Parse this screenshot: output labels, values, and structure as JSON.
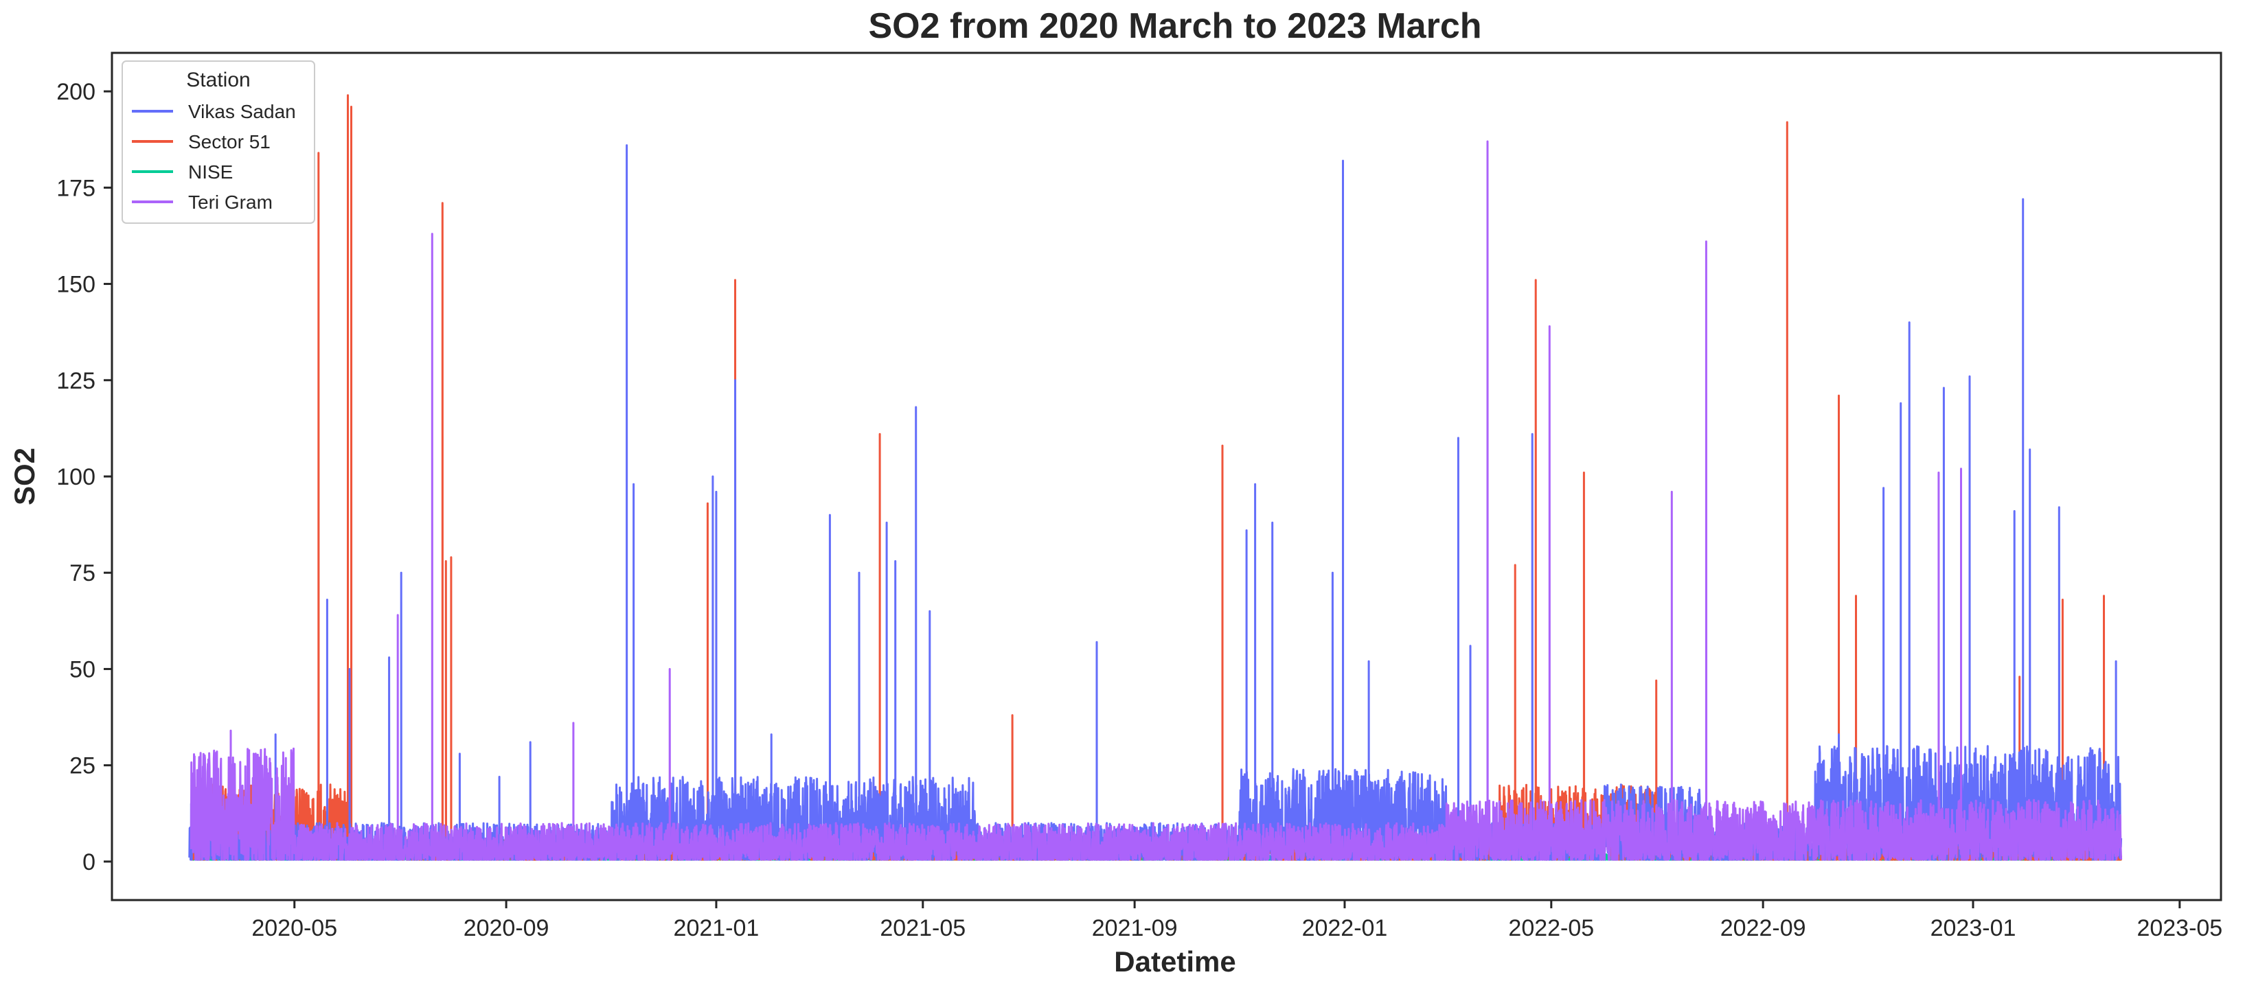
{
  "chart_data": {
    "type": "line",
    "title": "SO2 from 2020 March to 2023 March",
    "xlabel": "Datetime",
    "ylabel": "SO2",
    "x_range": [
      "2020-01-16",
      "2023-05-25"
    ],
    "ylim": [
      -10,
      210
    ],
    "x_ticks": [
      "2020-05",
      "2020-09",
      "2021-01",
      "2021-05",
      "2021-09",
      "2022-01",
      "2022-05",
      "2022-09",
      "2023-01",
      "2023-05"
    ],
    "y_ticks": [
      0,
      25,
      50,
      75,
      100,
      125,
      150,
      175,
      200
    ],
    "grid": false,
    "legend": {
      "title": "Station",
      "position": "top-left"
    },
    "series": [
      {
        "name": "Vikas Sadan",
        "color": "#636efa",
        "spikes": [
          [
            "2020-03-02",
            15
          ],
          [
            "2020-04-20",
            33
          ],
          [
            "2020-05-20",
            68
          ],
          [
            "2020-06-02",
            50
          ],
          [
            "2020-06-25",
            53
          ],
          [
            "2020-07-02",
            75
          ],
          [
            "2020-08-05",
            28
          ],
          [
            "2020-08-28",
            22
          ],
          [
            "2020-09-15",
            31
          ],
          [
            "2020-11-10",
            186
          ],
          [
            "2020-11-14",
            98
          ],
          [
            "2020-12-30",
            100
          ],
          [
            "2021-01-01",
            96
          ],
          [
            "2021-01-12",
            125
          ],
          [
            "2021-02-02",
            33
          ],
          [
            "2021-03-08",
            90
          ],
          [
            "2021-03-25",
            75
          ],
          [
            "2021-04-10",
            88
          ],
          [
            "2021-04-15",
            78
          ],
          [
            "2021-04-27",
            118
          ],
          [
            "2021-05-05",
            65
          ],
          [
            "2021-08-10",
            57
          ],
          [
            "2021-11-05",
            86
          ],
          [
            "2021-11-10",
            98
          ],
          [
            "2021-11-20",
            88
          ],
          [
            "2021-12-25",
            75
          ],
          [
            "2021-12-31",
            182
          ],
          [
            "2022-01-15",
            52
          ],
          [
            "2022-03-08",
            110
          ],
          [
            "2022-03-15",
            56
          ],
          [
            "2022-04-20",
            111
          ],
          [
            "2022-10-15",
            33
          ],
          [
            "2022-11-10",
            97
          ],
          [
            "2022-11-20",
            119
          ],
          [
            "2022-11-25",
            140
          ],
          [
            "2022-12-15",
            123
          ],
          [
            "2022-12-30",
            126
          ],
          [
            "2023-01-25",
            91
          ],
          [
            "2023-01-30",
            172
          ],
          [
            "2023-02-03",
            107
          ],
          [
            "2023-02-20",
            92
          ],
          [
            "2023-03-25",
            52
          ]
        ]
      },
      {
        "name": "Sector 51",
        "color": "#ef553b",
        "spikes": [
          [
            "2020-05-15",
            184
          ],
          [
            "2020-06-01",
            199
          ],
          [
            "2020-06-03",
            196
          ],
          [
            "2020-07-26",
            171
          ],
          [
            "2020-07-28",
            78
          ],
          [
            "2020-07-31",
            79
          ],
          [
            "2020-12-27",
            93
          ],
          [
            "2021-01-12",
            151
          ],
          [
            "2021-04-06",
            111
          ],
          [
            "2021-06-22",
            38
          ],
          [
            "2021-10-22",
            108
          ],
          [
            "2022-04-10",
            77
          ],
          [
            "2022-04-22",
            151
          ],
          [
            "2022-05-20",
            101
          ],
          [
            "2022-07-01",
            47
          ],
          [
            "2022-09-15",
            192
          ],
          [
            "2022-10-15",
            121
          ],
          [
            "2022-10-25",
            69
          ],
          [
            "2023-01-28",
            48
          ],
          [
            "2023-02-22",
            68
          ],
          [
            "2023-03-18",
            69
          ]
        ]
      },
      {
        "name": "NISE",
        "color": "#00cc96",
        "spikes": []
      },
      {
        "name": "Teri Gram",
        "color": "#ab63fa",
        "spikes": [
          [
            "2020-03-25",
            34
          ],
          [
            "2020-06-30",
            64
          ],
          [
            "2020-07-20",
            163
          ],
          [
            "2020-10-10",
            36
          ],
          [
            "2020-12-05",
            50
          ],
          [
            "2022-03-25",
            187
          ],
          [
            "2022-04-30",
            139
          ],
          [
            "2022-07-10",
            96
          ],
          [
            "2022-07-30",
            161
          ],
          [
            "2022-12-12",
            101
          ],
          [
            "2022-12-25",
            102
          ]
        ]
      }
    ]
  }
}
